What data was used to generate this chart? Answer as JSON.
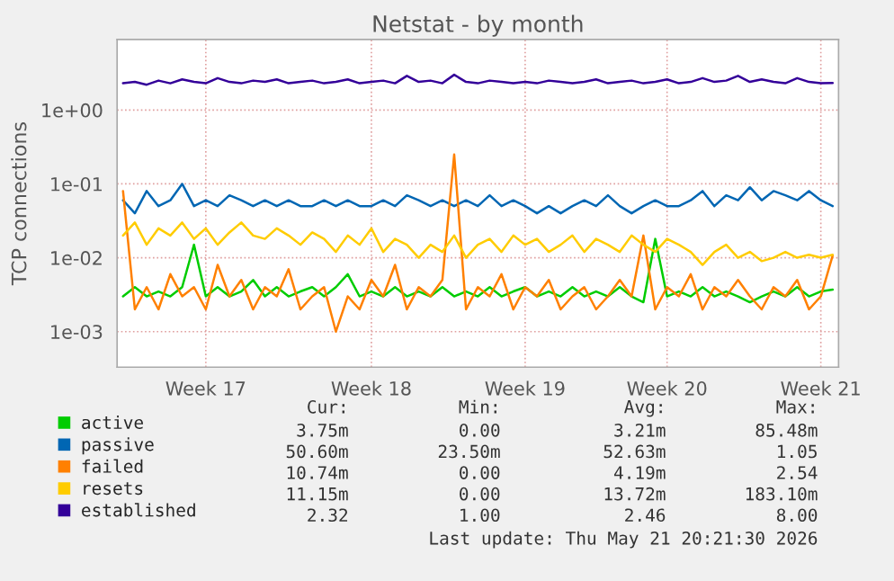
{
  "chart_data": {
    "type": "line",
    "title": "Netstat - by month",
    "ylabel": "TCP connections",
    "log": "y",
    "grid": true,
    "legend": "bottom left",
    "marker": "none",
    "line_style": "solid",
    "categories": [
      null,
      null,
      null,
      null,
      null,
      null,
      null,
      "Week 17",
      null,
      null,
      null,
      null,
      null,
      null,
      null,
      null,
      null,
      null,
      null,
      null,
      null,
      "Week 18",
      null,
      null,
      null,
      null,
      null,
      null,
      null,
      null,
      null,
      null,
      null,
      null,
      "Week 19",
      null,
      null,
      null,
      null,
      null,
      null,
      null,
      null,
      null,
      null,
      null,
      "Week 20",
      null,
      null,
      null,
      null,
      null,
      null,
      null,
      null,
      null,
      null,
      null,
      null,
      "Week 21",
      null
    ],
    "ylim": [
      0.00033,
      9
    ],
    "yticks": [
      {
        "value": 0.001,
        "label": "1e-03"
      },
      {
        "value": 0.01,
        "label": "1e-02"
      },
      {
        "value": 0.1,
        "label": "1e-01"
      },
      {
        "value": 1,
        "label": "1e+00"
      }
    ],
    "series": [
      {
        "name": "active",
        "color": "#00cc00",
        "values": [
          0.003,
          0.004,
          0.003,
          0.0035,
          0.003,
          0.004,
          0.015,
          0.003,
          0.004,
          0.003,
          0.0035,
          0.005,
          0.003,
          0.004,
          0.003,
          0.0035,
          0.004,
          0.003,
          0.004,
          0.006,
          0.003,
          0.0035,
          0.003,
          0.004,
          0.003,
          0.0035,
          0.003,
          0.004,
          0.003,
          0.0035,
          0.003,
          0.004,
          0.003,
          0.0035,
          0.004,
          0.003,
          0.0035,
          0.003,
          0.004,
          0.003,
          0.0035,
          0.003,
          0.004,
          0.003,
          0.0025,
          0.018,
          0.003,
          0.0035,
          0.003,
          0.004,
          0.003,
          0.0035,
          0.003,
          0.0025,
          0.003,
          0.0035,
          0.003,
          0.004,
          0.003,
          0.0035,
          0.0037
        ]
      },
      {
        "name": "passive",
        "color": "#0066b3",
        "values": [
          0.06,
          0.04,
          0.08,
          0.05,
          0.06,
          0.1,
          0.05,
          0.06,
          0.05,
          0.07,
          0.06,
          0.05,
          0.06,
          0.05,
          0.06,
          0.05,
          0.05,
          0.06,
          0.05,
          0.06,
          0.05,
          0.05,
          0.06,
          0.05,
          0.07,
          0.06,
          0.05,
          0.06,
          0.05,
          0.06,
          0.05,
          0.07,
          0.05,
          0.06,
          0.05,
          0.04,
          0.05,
          0.04,
          0.05,
          0.06,
          0.05,
          0.07,
          0.05,
          0.04,
          0.05,
          0.06,
          0.05,
          0.05,
          0.06,
          0.08,
          0.05,
          0.07,
          0.06,
          0.09,
          0.06,
          0.08,
          0.07,
          0.06,
          0.08,
          0.06,
          0.05
        ]
      },
      {
        "name": "failed",
        "color": "#ff8000",
        "values": [
          0.08,
          0.002,
          0.004,
          0.002,
          0.006,
          0.003,
          0.004,
          0.002,
          0.008,
          0.003,
          0.005,
          0.002,
          0.004,
          0.003,
          0.007,
          0.002,
          0.003,
          0.004,
          0.001,
          0.003,
          0.002,
          0.005,
          0.003,
          0.008,
          0.002,
          0.004,
          0.003,
          0.005,
          0.25,
          0.002,
          0.004,
          0.003,
          0.006,
          0.002,
          0.004,
          0.003,
          0.005,
          0.002,
          0.003,
          0.004,
          0.002,
          0.003,
          0.005,
          0.003,
          0.02,
          0.002,
          0.004,
          0.003,
          0.006,
          0.002,
          0.004,
          0.003,
          0.005,
          0.003,
          0.002,
          0.004,
          0.003,
          0.005,
          0.002,
          0.003,
          0.0107
        ]
      },
      {
        "name": "resets",
        "color": "#ffcc00",
        "values": [
          0.02,
          0.03,
          0.015,
          0.025,
          0.02,
          0.03,
          0.018,
          0.025,
          0.015,
          0.022,
          0.03,
          0.02,
          0.018,
          0.025,
          0.02,
          0.015,
          0.022,
          0.018,
          0.012,
          0.02,
          0.015,
          0.025,
          0.012,
          0.018,
          0.015,
          0.01,
          0.015,
          0.012,
          0.02,
          0.01,
          0.015,
          0.018,
          0.012,
          0.02,
          0.015,
          0.018,
          0.012,
          0.015,
          0.02,
          0.012,
          0.018,
          0.015,
          0.012,
          0.02,
          0.015,
          0.012,
          0.018,
          0.015,
          0.012,
          0.008,
          0.012,
          0.015,
          0.01,
          0.012,
          0.009,
          0.01,
          0.012,
          0.01,
          0.011,
          0.01,
          0.011
        ]
      },
      {
        "name": "established",
        "color": "#330099",
        "values": [
          2.3,
          2.4,
          2.2,
          2.5,
          2.3,
          2.6,
          2.4,
          2.3,
          2.7,
          2.4,
          2.3,
          2.5,
          2.4,
          2.6,
          2.3,
          2.4,
          2.5,
          2.3,
          2.4,
          2.6,
          2.3,
          2.4,
          2.5,
          2.3,
          2.9,
          2.4,
          2.5,
          2.3,
          3.0,
          2.4,
          2.3,
          2.5,
          2.4,
          2.3,
          2.4,
          2.3,
          2.5,
          2.4,
          2.3,
          2.4,
          2.6,
          2.3,
          2.4,
          2.5,
          2.3,
          2.4,
          2.6,
          2.3,
          2.4,
          2.7,
          2.4,
          2.5,
          2.9,
          2.4,
          2.6,
          2.4,
          2.3,
          2.7,
          2.4,
          2.3,
          2.32
        ]
      }
    ],
    "annotations": [
      "Cur:",
      "Min:",
      "Avg:",
      "Max:",
      "3.75m",
      "0.00",
      "3.21m",
      "85.48m",
      "50.60m",
      "23.50m",
      "52.63m",
      "1.05",
      "10.74m",
      "0.00",
      "4.19m",
      "2.54",
      "11.15m",
      "0.00",
      "13.72m",
      "183.10m",
      "2.32",
      "1.00",
      "2.46",
      "8.00",
      "Last update: Thu May 21 20:21:30 2026"
    ]
  }
}
